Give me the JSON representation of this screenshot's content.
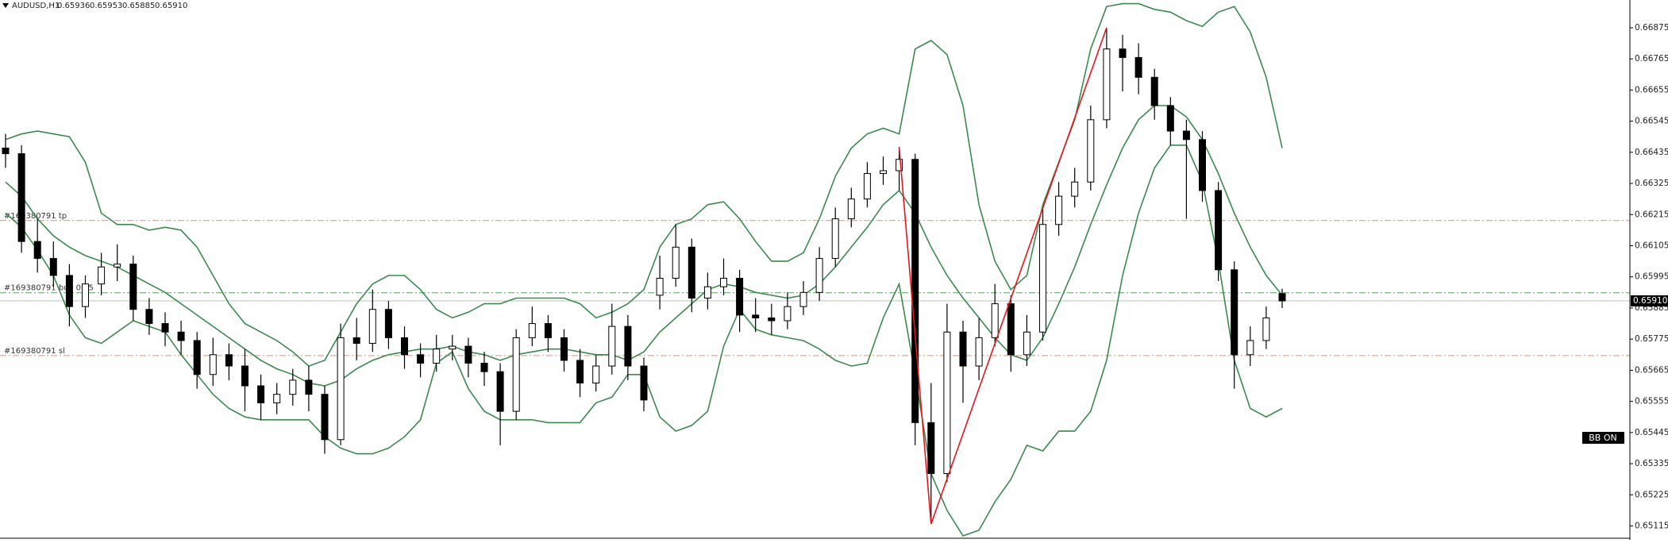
{
  "chart_data": {
    "type": "candlestick",
    "symbol": "AUDUSD,H1",
    "header_ohlc_labels": [
      "0.65936",
      "0.65953",
      "0.65885",
      "0.65910"
    ],
    "badge": "BB ON",
    "ylim": [
      0.65066,
      0.66973
    ],
    "yticks": [
      0.66875,
      0.66765,
      0.66655,
      0.66545,
      0.66435,
      0.66325,
      0.66215,
      0.66105,
      0.65995,
      0.65885,
      0.65775,
      0.65665,
      0.65555,
      0.65445,
      0.65335,
      0.65225,
      0.65115
    ],
    "bull_color": "#ffffff",
    "bear_color": "#000000",
    "ohlc": [
      [
        0.6645,
        0.665,
        0.6638,
        0.6643
      ],
      [
        0.6643,
        0.6646,
        0.6608,
        0.6612
      ],
      [
        0.6612,
        0.662,
        0.6601,
        0.6606
      ],
      [
        0.6606,
        0.6612,
        0.6596,
        0.66
      ],
      [
        0.66,
        0.6604,
        0.6582,
        0.6589
      ],
      [
        0.6589,
        0.66,
        0.6585,
        0.6597
      ],
      [
        0.6597,
        0.6608,
        0.6593,
        0.6603
      ],
      [
        0.6603,
        0.6611,
        0.6598,
        0.6604
      ],
      [
        0.6604,
        0.6607,
        0.6584,
        0.6588
      ],
      [
        0.6588,
        0.6592,
        0.6579,
        0.6583
      ],
      [
        0.6583,
        0.6587,
        0.6575,
        0.658
      ],
      [
        0.658,
        0.6584,
        0.6572,
        0.6577
      ],
      [
        0.6577,
        0.658,
        0.656,
        0.6565
      ],
      [
        0.6565,
        0.6578,
        0.6561,
        0.6572
      ],
      [
        0.6572,
        0.6576,
        0.6563,
        0.6568
      ],
      [
        0.6568,
        0.6574,
        0.6552,
        0.6561
      ],
      [
        0.6561,
        0.6565,
        0.6549,
        0.6555
      ],
      [
        0.6555,
        0.6562,
        0.6551,
        0.6558
      ],
      [
        0.6558,
        0.6567,
        0.6554,
        0.6563
      ],
      [
        0.6563,
        0.6568,
        0.6552,
        0.6558
      ],
      [
        0.6558,
        0.6561,
        0.6537,
        0.6542
      ],
      [
        0.6542,
        0.6583,
        0.654,
        0.6578
      ],
      [
        0.6578,
        0.6585,
        0.657,
        0.6576
      ],
      [
        0.6576,
        0.6595,
        0.6573,
        0.6588
      ],
      [
        0.6588,
        0.6591,
        0.6574,
        0.6578
      ],
      [
        0.6578,
        0.6582,
        0.6567,
        0.6572
      ],
      [
        0.6572,
        0.6576,
        0.6564,
        0.6569
      ],
      [
        0.6569,
        0.6579,
        0.6566,
        0.6574
      ],
      [
        0.6574,
        0.6579,
        0.657,
        0.6575
      ],
      [
        0.6575,
        0.6578,
        0.6564,
        0.6569
      ],
      [
        0.6569,
        0.6573,
        0.6561,
        0.6566
      ],
      [
        0.6566,
        0.6569,
        0.654,
        0.6552
      ],
      [
        0.6552,
        0.6581,
        0.6549,
        0.6578
      ],
      [
        0.6578,
        0.6589,
        0.6575,
        0.6583
      ],
      [
        0.6583,
        0.6586,
        0.6573,
        0.6578
      ],
      [
        0.6578,
        0.6581,
        0.6566,
        0.657
      ],
      [
        0.657,
        0.6574,
        0.6557,
        0.6562
      ],
      [
        0.6562,
        0.6572,
        0.6559,
        0.6568
      ],
      [
        0.6568,
        0.659,
        0.6565,
        0.6582
      ],
      [
        0.6582,
        0.6586,
        0.6563,
        0.6568
      ],
      [
        0.6568,
        0.6571,
        0.6552,
        0.6556
      ],
      [
        0.6593,
        0.6607,
        0.6588,
        0.6599
      ],
      [
        0.6599,
        0.6618,
        0.6596,
        0.661
      ],
      [
        0.661,
        0.6613,
        0.6587,
        0.6592
      ],
      [
        0.6592,
        0.6601,
        0.6588,
        0.6596
      ],
      [
        0.6596,
        0.6606,
        0.6593,
        0.6599
      ],
      [
        0.6599,
        0.6602,
        0.658,
        0.6586
      ],
      [
        0.6586,
        0.6592,
        0.658,
        0.6585
      ],
      [
        0.6585,
        0.659,
        0.6579,
        0.6584
      ],
      [
        0.6584,
        0.6594,
        0.6581,
        0.6589
      ],
      [
        0.6589,
        0.6598,
        0.6586,
        0.6594
      ],
      [
        0.6594,
        0.661,
        0.6591,
        0.6606
      ],
      [
        0.6606,
        0.6624,
        0.6603,
        0.662
      ],
      [
        0.662,
        0.6631,
        0.6617,
        0.6627
      ],
      [
        0.6627,
        0.664,
        0.6624,
        0.6636
      ],
      [
        0.6636,
        0.6642,
        0.6632,
        0.6637
      ],
      [
        0.6637,
        0.66454,
        0.663,
        0.6641
      ],
      [
        0.6641,
        0.6643,
        0.654,
        0.6548
      ],
      [
        0.6548,
        0.6562,
        0.65122,
        0.653
      ],
      [
        0.653,
        0.659,
        0.6527,
        0.658
      ],
      [
        0.658,
        0.6584,
        0.6555,
        0.6568
      ],
      [
        0.6568,
        0.6585,
        0.6563,
        0.6578
      ],
      [
        0.6578,
        0.6597,
        0.6575,
        0.659
      ],
      [
        0.659,
        0.6593,
        0.6566,
        0.6572
      ],
      [
        0.6572,
        0.6586,
        0.6568,
        0.658
      ],
      [
        0.658,
        0.6624,
        0.6577,
        0.6618
      ],
      [
        0.6618,
        0.6633,
        0.6614,
        0.6628
      ],
      [
        0.6628,
        0.6638,
        0.6624,
        0.6633
      ],
      [
        0.6633,
        0.666,
        0.663,
        0.6655
      ],
      [
        0.6655,
        0.66875,
        0.6652,
        0.668
      ],
      [
        0.668,
        0.6685,
        0.6665,
        0.6677
      ],
      [
        0.6677,
        0.6682,
        0.6664,
        0.667
      ],
      [
        0.667,
        0.6673,
        0.6655,
        0.666
      ],
      [
        0.666,
        0.6663,
        0.6646,
        0.6651
      ],
      [
        0.6651,
        0.6655,
        0.662,
        0.6648
      ],
      [
        0.6648,
        0.6651,
        0.6626,
        0.663
      ],
      [
        0.663,
        0.6633,
        0.6598,
        0.6602
      ],
      [
        0.6602,
        0.6605,
        0.656,
        0.6572
      ],
      [
        0.6572,
        0.6582,
        0.6568,
        0.6577
      ],
      [
        0.6577,
        0.6589,
        0.6574,
        0.6585
      ],
      [
        0.65936,
        0.65953,
        0.65885,
        0.6591
      ]
    ],
    "bands_color": "#3c8a4e",
    "bands": [
      {
        "values": [
          0.6648,
          0.665,
          0.6651,
          0.665,
          0.6649,
          0.664,
          0.6622,
          0.6618,
          0.6618,
          0.6616,
          0.6617,
          0.6616,
          0.661,
          0.66,
          0.659,
          0.6583,
          0.658,
          0.6577,
          0.6573,
          0.6568,
          0.657,
          0.658,
          0.659,
          0.6597,
          0.66,
          0.66,
          0.6595,
          0.6588,
          0.6585,
          0.6587,
          0.659,
          0.659,
          0.6592,
          0.6592,
          0.6592,
          0.6592,
          0.659,
          0.6585,
          0.6587,
          0.659,
          0.6595,
          0.661,
          0.6618,
          0.662,
          0.6625,
          0.6626,
          0.662,
          0.6612,
          0.6605,
          0.6605,
          0.6608,
          0.662,
          0.6635,
          0.6645,
          0.665,
          0.6652,
          0.665,
          0.668,
          0.6683,
          0.6678,
          0.666,
          0.6625,
          0.6605,
          0.6595,
          0.66,
          0.6625,
          0.664,
          0.6655,
          0.668,
          0.6695,
          0.6696,
          0.6696,
          0.6694,
          0.6693,
          0.669,
          0.6688,
          0.6693,
          0.6695,
          0.6686,
          0.667,
          0.6645
        ]
      },
      {
        "values": [
          0.6633,
          0.6628,
          0.662,
          0.6614,
          0.661,
          0.6607,
          0.6605,
          0.6603,
          0.66,
          0.6597,
          0.6594,
          0.659,
          0.6586,
          0.6582,
          0.6578,
          0.6574,
          0.657,
          0.6567,
          0.6565,
          0.6562,
          0.6561,
          0.6563,
          0.6567,
          0.657,
          0.6572,
          0.6573,
          0.6574,
          0.6574,
          0.6575,
          0.6573,
          0.6572,
          0.657,
          0.6572,
          0.6573,
          0.6574,
          0.6574,
          0.6573,
          0.6572,
          0.6572,
          0.657,
          0.6573,
          0.658,
          0.6585,
          0.659,
          0.6595,
          0.6597,
          0.6596,
          0.6594,
          0.6593,
          0.6592,
          0.6593,
          0.6597,
          0.6603,
          0.661,
          0.6617,
          0.6625,
          0.663,
          0.6622,
          0.661,
          0.66,
          0.6592,
          0.6585,
          0.6578,
          0.6572,
          0.657,
          0.6578,
          0.659,
          0.6603,
          0.6618,
          0.6632,
          0.6645,
          0.6655,
          0.666,
          0.666,
          0.6656,
          0.6648,
          0.6636,
          0.6622,
          0.661,
          0.66,
          0.6593
        ]
      },
      {
        "values": [
          0.6622,
          0.6617,
          0.6609,
          0.66,
          0.6586,
          0.6578,
          0.6576,
          0.658,
          0.6584,
          0.6582,
          0.658,
          0.6572,
          0.6565,
          0.6558,
          0.6553,
          0.655,
          0.6549,
          0.6549,
          0.6549,
          0.6549,
          0.6543,
          0.6539,
          0.6537,
          0.6537,
          0.6539,
          0.6543,
          0.6549,
          0.6569,
          0.6573,
          0.656,
          0.6552,
          0.6549,
          0.6549,
          0.6549,
          0.6548,
          0.6548,
          0.6548,
          0.6555,
          0.6557,
          0.6565,
          0.6565,
          0.655,
          0.6545,
          0.6547,
          0.6552,
          0.6575,
          0.6588,
          0.6581,
          0.6579,
          0.6578,
          0.6577,
          0.6574,
          0.657,
          0.6568,
          0.6569,
          0.6585,
          0.6597,
          0.6565,
          0.653,
          0.6517,
          0.6508,
          0.651,
          0.652,
          0.6528,
          0.654,
          0.6538,
          0.6545,
          0.6545,
          0.6552,
          0.657,
          0.66,
          0.6622,
          0.6638,
          0.6646,
          0.6646,
          0.6633,
          0.6605,
          0.657,
          0.6553,
          0.655,
          0.6553
        ]
      }
    ],
    "zigzag": {
      "color": "#e8141e",
      "x": [
        56,
        58,
        69
      ],
      "values": [
        0.66454,
        0.65122,
        0.66875
      ]
    },
    "levels": [
      {
        "label": "#169380791 tp",
        "value": 0.66194,
        "color": "#f08a6a"
      },
      {
        "label": "#169380791 buy 0.15",
        "value": 0.65939,
        "color": "#58a460"
      },
      {
        "label": "#169380791 sl",
        "value": 0.65717,
        "color": "#f08a6a"
      }
    ],
    "current_price": {
      "value": 0.6591,
      "label": "0.65910"
    }
  }
}
